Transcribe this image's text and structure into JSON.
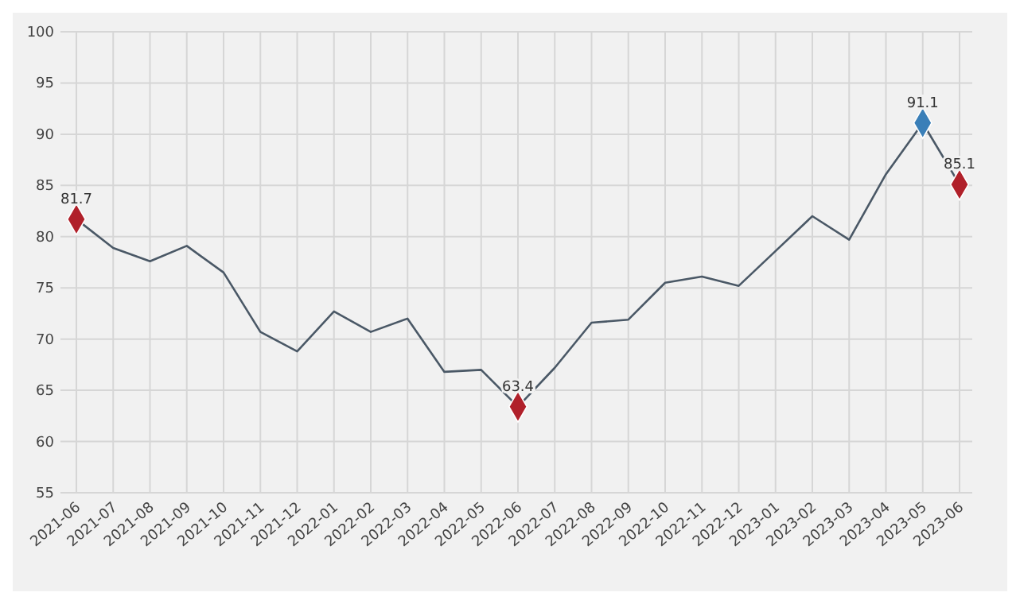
{
  "chart_data": {
    "type": "line",
    "categories": [
      "2021-06",
      "2021-07",
      "2021-08",
      "2021-09",
      "2021-10",
      "2021-11",
      "2021-12",
      "2022-01",
      "2022-02",
      "2022-03",
      "2022-04",
      "2022-05",
      "2022-06",
      "2022-07",
      "2022-08",
      "2022-09",
      "2022-10",
      "2022-11",
      "2022-12",
      "2023-01",
      "2023-02",
      "2023-03",
      "2023-04",
      "2023-05",
      "2023-06"
    ],
    "series": [
      {
        "color": "#4a5866",
        "marker": "none",
        "values": [
          81.7,
          78.9,
          77.6,
          79.1,
          76.5,
          70.7,
          68.8,
          72.7,
          70.7,
          72.0,
          66.8,
          67.0,
          63.4,
          67.2,
          71.6,
          71.9,
          75.5,
          76.1,
          75.2,
          78.6,
          82.0,
          79.7,
          86.1,
          91.1,
          85.1
        ]
      },
      {
        "type": "scatter",
        "marker": "diamond",
        "values": [
          81.7,
          null,
          null,
          null,
          null,
          null,
          null,
          null,
          null,
          null,
          null,
          null,
          63.4,
          null,
          null,
          null,
          null,
          null,
          null,
          null,
          null,
          null,
          null,
          91.1,
          85.1
        ],
        "colors": [
          "#b0202a",
          null,
          null,
          null,
          null,
          null,
          null,
          null,
          null,
          null,
          null,
          null,
          "#b0202a",
          null,
          null,
          null,
          null,
          null,
          null,
          null,
          null,
          null,
          null,
          "#3a7fb8",
          "#b0202a"
        ],
        "value_labels": [
          "81.7",
          null,
          null,
          null,
          null,
          null,
          null,
          null,
          null,
          null,
          null,
          null,
          "63.4",
          null,
          null,
          null,
          null,
          null,
          null,
          null,
          null,
          null,
          null,
          "91.1",
          "85.1"
        ]
      }
    ],
    "ylim": [
      55,
      100
    ],
    "yticks": [
      55,
      60,
      65,
      70,
      75,
      80,
      85,
      90,
      95,
      100
    ],
    "grid": true
  }
}
